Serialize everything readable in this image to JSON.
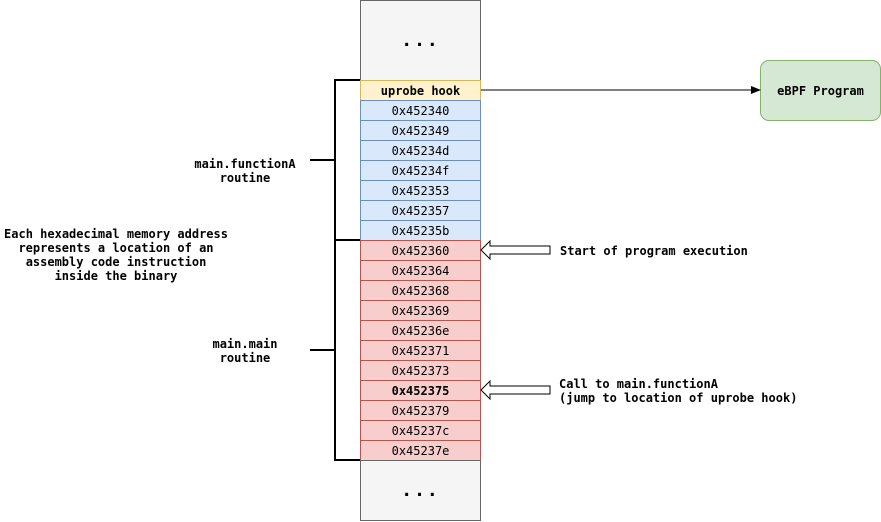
{
  "ellipsis_top": "...",
  "ellipsis_bottom": "...",
  "hook_label": "uprobe hook",
  "function_a_addresses": [
    "0x452340",
    "0x452349",
    "0x45234d",
    "0x45234f",
    "0x452353",
    "0x452357",
    "0x45235b"
  ],
  "main_addresses": [
    "0x452360",
    "0x452364",
    "0x452368",
    "0x452369",
    "0x45236e",
    "0x452371",
    "0x452373",
    "0x452375",
    "0x452379",
    "0x45237c",
    "0x45237e"
  ],
  "ebpf_label": "eBPF Program",
  "function_a_label": "main.functionA\nroutine",
  "main_label": "main.main\nroutine",
  "note": "Each hexadecimal memory address\nrepresents a location of an\nassembly code instruction\ninside the binary",
  "start_label": "Start of program execution",
  "call_label": "Call to main.functionA\n(jump to location of uprobe hook)",
  "colors": {
    "hook": "#fff2cc",
    "function_a": "#dae8fc",
    "main": "#f8cecc",
    "ebpf": "#d5e8d4",
    "ellipsis": "#f5f5f5"
  }
}
